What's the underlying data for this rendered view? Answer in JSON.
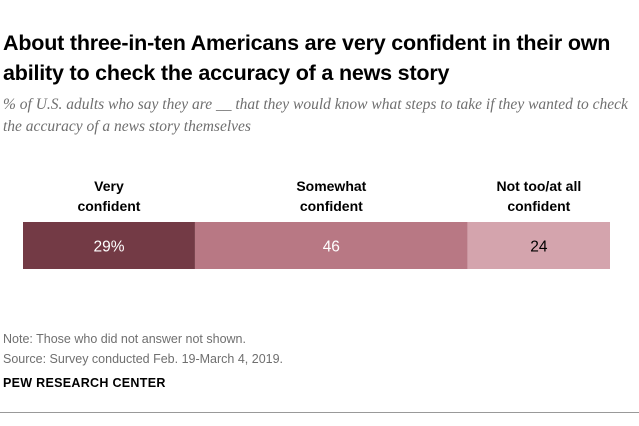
{
  "title": "About three-in-ten Americans are very confident in their own ability to check the accuracy of a news story",
  "subtitle": "% of U.S. adults who say they are __ that they would know what steps to take if they wanted to check the accuracy of a news story themselves",
  "chart_data": {
    "type": "bar",
    "orientation": "horizontal-stacked",
    "categories": [
      [
        "Very",
        "confident"
      ],
      [
        "Somewhat",
        "confident"
      ],
      [
        "Not too/at all",
        "confident"
      ]
    ],
    "values": [
      29,
      46,
      24
    ],
    "labels": [
      "29%",
      "46",
      "24"
    ],
    "colors": [
      "#733a45",
      "#b87884",
      "#d4a4ad"
    ],
    "label_colors": [
      "#ffffff",
      "#ffffff",
      "#000000"
    ],
    "title": "About three-in-ten Americans are very confident in their own ability to check the accuracy of a news story",
    "xlabel": "",
    "ylabel": "",
    "xlim": [
      0,
      99
    ]
  },
  "footer": {
    "note": "Note: Those who did not answer not shown.",
    "source": "Source: Survey conducted Feb. 19-March 4, 2019.",
    "brand": "PEW RESEARCH CENTER"
  }
}
